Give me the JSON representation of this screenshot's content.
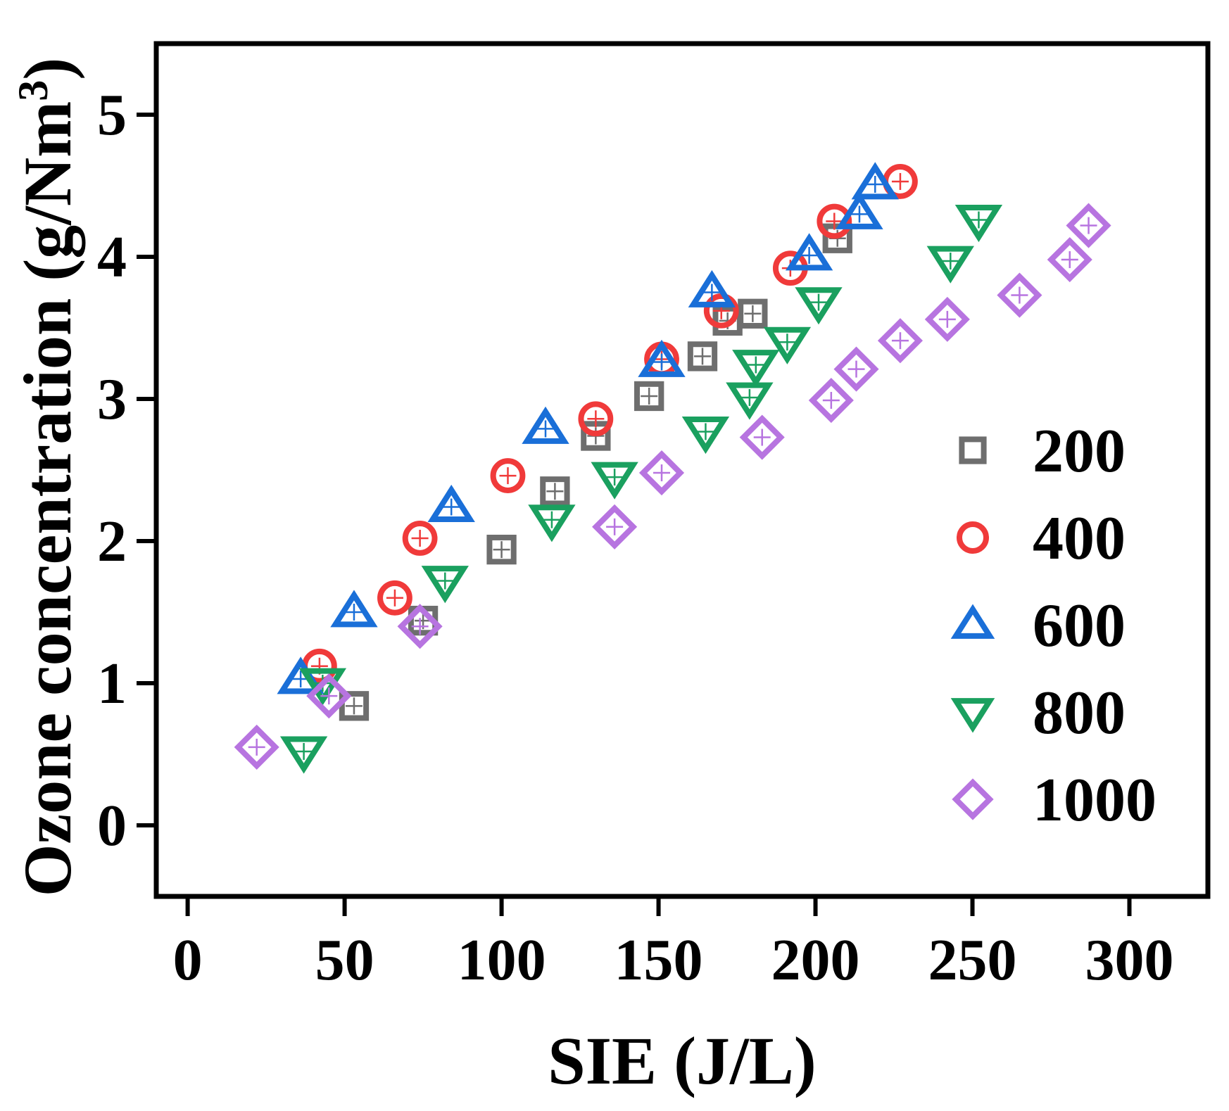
{
  "chart_data": {
    "type": "scatter",
    "title": "",
    "xlabel": "SIE (J/L)",
    "ylabel_main": "Ozone concentration (g/Nm",
    "ylabel_sup": "3",
    "ylabel_close": ")",
    "xlim": [
      -10,
      325
    ],
    "ylim": [
      -0.5,
      5.5
    ],
    "xticks": [
      0,
      50,
      100,
      150,
      200,
      250,
      300
    ],
    "yticks": [
      0,
      1,
      2,
      3,
      4,
      5
    ],
    "legend_position": "right",
    "series": [
      {
        "name": "200",
        "marker": "square",
        "color": "#6e6e6e",
        "x": [
          53,
          75,
          100,
          117,
          130,
          147,
          164,
          172,
          180,
          207
        ],
        "y": [
          0.84,
          1.44,
          1.94,
          2.35,
          2.74,
          3.02,
          3.3,
          3.55,
          3.6,
          4.13
        ]
      },
      {
        "name": "400",
        "marker": "circle",
        "color": "#f03a3a",
        "x": [
          42,
          66,
          74,
          102,
          130,
          151,
          170,
          192,
          206,
          227
        ],
        "y": [
          1.12,
          1.6,
          2.02,
          2.46,
          2.86,
          3.28,
          3.62,
          3.92,
          4.25,
          4.53
        ]
      },
      {
        "name": "600",
        "marker": "triangle-up",
        "color": "#1a6fd8",
        "x": [
          36,
          53,
          84,
          114,
          151,
          167,
          198,
          214,
          219
        ],
        "y": [
          1.03,
          1.5,
          2.24,
          2.79,
          3.26,
          3.75,
          4.01,
          4.3,
          4.51
        ]
      },
      {
        "name": "800",
        "marker": "triangle-down",
        "color": "#1aa05f",
        "x": [
          37,
          43,
          82,
          116,
          136,
          165,
          179,
          181,
          191,
          201,
          243,
          252
        ],
        "y": [
          0.52,
          1.0,
          1.72,
          2.15,
          2.45,
          2.77,
          3.01,
          3.24,
          3.4,
          3.68,
          3.97,
          4.26
        ]
      },
      {
        "name": "1000",
        "marker": "diamond",
        "color": "#b774e0",
        "x": [
          22,
          45,
          74,
          136,
          151,
          183,
          205,
          213,
          227,
          242,
          265,
          281,
          287
        ],
        "y": [
          0.55,
          0.91,
          1.4,
          2.1,
          2.48,
          2.73,
          2.99,
          3.21,
          3.41,
          3.56,
          3.73,
          3.98,
          4.22
        ]
      }
    ]
  }
}
